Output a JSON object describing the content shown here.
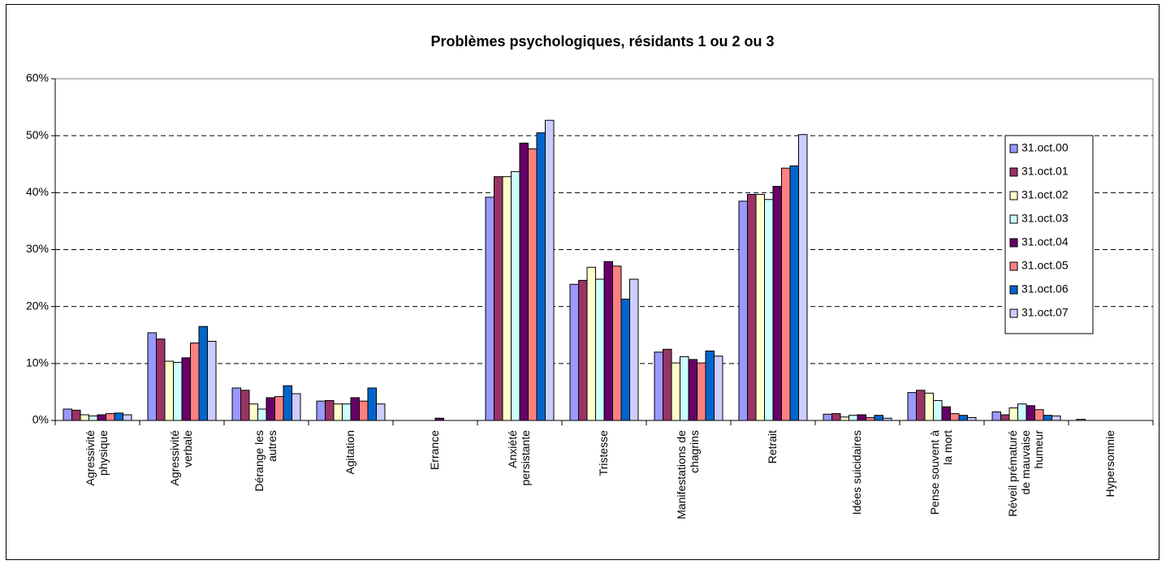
{
  "chart_data": {
    "type": "bar",
    "title": "Problèmes psychologiques, résidants 1 ou 2 ou 3",
    "categories": [
      "Agressivité\nphysique",
      "Agressivité\nverbale",
      "Dérange les\nautres",
      "Agitation",
      "Errance",
      "Anxiété\npersistante",
      "Tristesse",
      "Manifestations de\nchagrins",
      "Retrait",
      "Idées suicidaires",
      "Pense souvent à\nla mort",
      "Réveil prématuré\nde mauvaise\nhumeur",
      "Hypersomnie"
    ],
    "series": [
      {
        "name": "31.oct.00",
        "color": "#9999ff",
        "values": [
          2.0,
          15.4,
          5.7,
          3.4,
          0,
          39.2,
          23.9,
          12.0,
          38.5,
          1.1,
          4.9,
          1.5,
          0.2
        ]
      },
      {
        "name": "31.oct.01",
        "color": "#993366",
        "values": [
          1.8,
          14.3,
          5.3,
          3.5,
          0,
          42.8,
          24.6,
          12.5,
          39.7,
          1.2,
          5.3,
          1.0,
          0
        ]
      },
      {
        "name": "31.oct.02",
        "color": "#ffffcc",
        "values": [
          1.0,
          10.4,
          2.9,
          2.9,
          0,
          42.8,
          26.9,
          10.1,
          39.7,
          0.6,
          4.8,
          2.2,
          0
        ]
      },
      {
        "name": "31.oct.03",
        "color": "#ccffff",
        "values": [
          0.8,
          10.2,
          2.0,
          2.9,
          0,
          43.7,
          24.8,
          11.2,
          38.8,
          0.9,
          3.5,
          2.9,
          0
        ]
      },
      {
        "name": "31.oct.04",
        "color": "#660066",
        "values": [
          1.0,
          11.0,
          4.0,
          4.0,
          0.4,
          48.7,
          27.9,
          10.7,
          41.1,
          1.0,
          2.4,
          2.6,
          0
        ]
      },
      {
        "name": "31.oct.05",
        "color": "#ff8080",
        "values": [
          1.2,
          13.6,
          4.2,
          3.4,
          0,
          47.7,
          27.1,
          10.1,
          44.3,
          0.5,
          1.2,
          1.9,
          0
        ]
      },
      {
        "name": "31.oct.06",
        "color": "#0066cc",
        "values": [
          1.3,
          16.5,
          6.1,
          5.7,
          0,
          50.5,
          21.3,
          12.2,
          44.7,
          0.9,
          0.9,
          0.9,
          0
        ]
      },
      {
        "name": "31.oct.07",
        "color": "#ccccff",
        "values": [
          1.0,
          13.9,
          4.7,
          2.9,
          0,
          52.7,
          24.8,
          11.3,
          50.2,
          0.4,
          0.5,
          0.8,
          0
        ]
      }
    ],
    "ylim": [
      0,
      60
    ],
    "yticks": [
      {
        "value": 0,
        "label": "0%"
      },
      {
        "value": 10,
        "label": "10%"
      },
      {
        "value": 20,
        "label": "20%"
      },
      {
        "value": 30,
        "label": "30%"
      },
      {
        "value": 40,
        "label": "40%"
      },
      {
        "value": 50,
        "label": "50%"
      },
      {
        "value": 60,
        "label": "60%"
      }
    ],
    "grid": true,
    "legend": "right"
  }
}
